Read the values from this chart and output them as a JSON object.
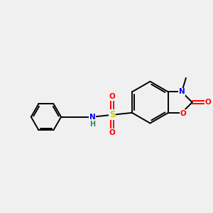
{
  "background_color": "#f0f0f0",
  "bond_color": "#000000",
  "figsize": [
    3.0,
    3.0
  ],
  "dpi": 100,
  "atom_colors": {
    "N": "#0000ff",
    "O": "#ff0000",
    "S": "#cccc00",
    "H": "#2e8b57",
    "C": "#000000"
  },
  "lw": 1.4,
  "fontsize": 7.5
}
